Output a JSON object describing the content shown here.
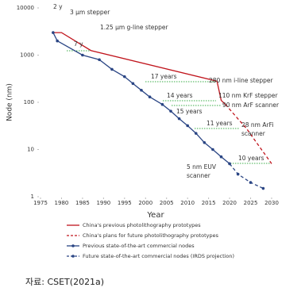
{
  "chart_data": {
    "type": "line",
    "y_label": "Node (nm)",
    "x_label": "Year",
    "xlim": [
      1975,
      2030
    ],
    "xticks": [
      1975,
      1980,
      1985,
      1990,
      1995,
      2000,
      2005,
      2010,
      2015,
      2020,
      2025,
      2030
    ],
    "ylim": [
      1,
      10000
    ],
    "yticks": [
      1,
      10,
      100,
      1000,
      10000
    ],
    "log_y": true,
    "series": [
      {
        "name": "China's previous photolithography prototypes",
        "color": "#c0141c",
        "dash": false,
        "markers": false,
        "x": [
          1978,
          1980,
          1987,
          2017,
          2018,
          2019
        ],
        "values": [
          3000,
          3000,
          1250,
          280,
          110,
          90
        ]
      },
      {
        "name": "China's plans for future photolithography prototypes",
        "color": "#c0141c",
        "dash": true,
        "markers": false,
        "x": [
          2019,
          2024,
          2030
        ],
        "values": [
          90,
          28,
          5
        ]
      },
      {
        "name": "Previous state-of-the-art commercial nodes",
        "color": "#2a4584",
        "dash": false,
        "markers": true,
        "x": [
          1978,
          1979,
          1985,
          1989,
          1992,
          1995,
          1997,
          1999,
          2001,
          2004,
          2006,
          2008,
          2010,
          2012,
          2014,
          2016,
          2018,
          2020
        ],
        "values": [
          3000,
          2000,
          1000,
          800,
          500,
          350,
          250,
          180,
          130,
          90,
          65,
          45,
          32,
          22,
          14,
          10,
          7,
          5
        ]
      },
      {
        "name": "Future state-of-the-art commercial nodes (IRDS projection)",
        "color": "#2a4584",
        "dash": true,
        "markers": true,
        "x": [
          2020,
          2022,
          2025,
          2028
        ],
        "values": [
          5,
          3,
          2,
          1.5
        ]
      }
    ],
    "annotations": [
      "2 y",
      "3 μm stepper",
      "7 y",
      "1.25 μm g-line stepper",
      "17 years",
      "280 nm i-line stepper",
      "14 years",
      "110 nm KrF stepper",
      "90 nm ArF scanner",
      "15 years",
      "28 nm ArFi",
      "scanner",
      "11 years",
      "10 years",
      "5 nm EUV",
      "scanner"
    ],
    "source": "자료:  CSET(2021a)"
  }
}
